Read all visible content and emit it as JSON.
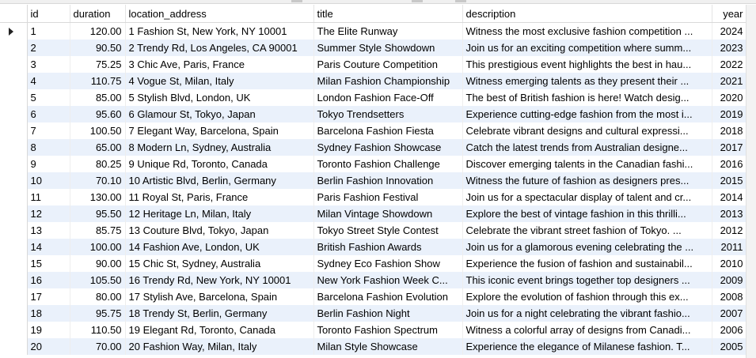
{
  "columns": {
    "id": "id",
    "duration": "duration",
    "location_address": "location_address",
    "title": "title",
    "description": "description",
    "year": "year"
  },
  "rows": [
    {
      "id": "1",
      "duration": "120.00",
      "location_address": "1 Fashion St, New York, NY 10001",
      "title": "The Elite Runway",
      "description": "Witness the most exclusive fashion competition ...",
      "year": "2024"
    },
    {
      "id": "2",
      "duration": "90.50",
      "location_address": "2 Trendy Rd, Los Angeles, CA 90001",
      "title": "Summer Style Showdown",
      "description": "Join us for an exciting competition where summ...",
      "year": "2023"
    },
    {
      "id": "3",
      "duration": "75.25",
      "location_address": "3 Chic Ave, Paris, France",
      "title": "Paris Couture Competition",
      "description": "This prestigious event highlights the best in hau...",
      "year": "2022"
    },
    {
      "id": "4",
      "duration": "110.75",
      "location_address": "4 Vogue St, Milan, Italy",
      "title": "Milan Fashion Championship",
      "description": "Witness emerging talents as they present their ...",
      "year": "2021"
    },
    {
      "id": "5",
      "duration": "85.00",
      "location_address": "5 Stylish Blvd, London, UK",
      "title": "London Fashion Face-Off",
      "description": "The best of British fashion is here! Watch desig...",
      "year": "2020"
    },
    {
      "id": "6",
      "duration": "95.60",
      "location_address": "6 Glamour St, Tokyo, Japan",
      "title": "Tokyo Trendsetters",
      "description": "Experience cutting-edge fashion from the most i...",
      "year": "2019"
    },
    {
      "id": "7",
      "duration": "100.50",
      "location_address": "7 Elegant Way, Barcelona, Spain",
      "title": "Barcelona Fashion Fiesta",
      "description": "Celebrate vibrant designs and cultural expressi...",
      "year": "2018"
    },
    {
      "id": "8",
      "duration": "65.00",
      "location_address": "8 Modern Ln, Sydney, Australia",
      "title": "Sydney Fashion Showcase",
      "description": "Catch the latest trends from Australian designe...",
      "year": "2017"
    },
    {
      "id": "9",
      "duration": "80.25",
      "location_address": "9 Unique Rd, Toronto, Canada",
      "title": "Toronto Fashion Challenge",
      "description": "Discover emerging talents in the Canadian fashi...",
      "year": "2016"
    },
    {
      "id": "10",
      "duration": "70.10",
      "location_address": "10 Artistic Blvd, Berlin, Germany",
      "title": "Berlin Fashion Innovation",
      "description": "Witness the future of fashion as designers pres...",
      "year": "2015"
    },
    {
      "id": "11",
      "duration": "130.00",
      "location_address": "11 Royal St, Paris, France",
      "title": "Paris Fashion Festival",
      "description": "Join us for a spectacular display of talent and cr...",
      "year": "2014"
    },
    {
      "id": "12",
      "duration": "95.50",
      "location_address": "12 Heritage Ln, Milan, Italy",
      "title": "Milan Vintage Showdown",
      "description": "Explore the best of vintage fashion in this thrilli...",
      "year": "2013"
    },
    {
      "id": "13",
      "duration": "85.75",
      "location_address": "13 Couture Blvd, Tokyo, Japan",
      "title": "Tokyo Street Style Contest",
      "description": "Celebrate the vibrant street fashion of Tokyo. ...",
      "year": "2012"
    },
    {
      "id": "14",
      "duration": "100.00",
      "location_address": "14 Fashion Ave, London, UK",
      "title": "British Fashion Awards",
      "description": "Join us for a glamorous evening celebrating the ...",
      "year": "2011"
    },
    {
      "id": "15",
      "duration": "90.00",
      "location_address": "15 Chic St, Sydney, Australia",
      "title": "Sydney Eco Fashion Show",
      "description": "Experience the fusion of fashion and sustainabil...",
      "year": "2010"
    },
    {
      "id": "16",
      "duration": "105.50",
      "location_address": "16 Trendy Rd, New York, NY 10001",
      "title": "New York Fashion Week C...",
      "description": "This iconic event brings together top designers ...",
      "year": "2009"
    },
    {
      "id": "17",
      "duration": "80.00",
      "location_address": "17 Stylish Ave, Barcelona, Spain",
      "title": "Barcelona Fashion Evolution",
      "description": "Explore the evolution of fashion through this ex...",
      "year": "2008"
    },
    {
      "id": "18",
      "duration": "95.75",
      "location_address": "18 Trendy St, Berlin, Germany",
      "title": "Berlin Fashion Night",
      "description": "Join us for a night celebrating the vibrant fashio...",
      "year": "2007"
    },
    {
      "id": "19",
      "duration": "110.50",
      "location_address": "19 Elegant Rd, Toronto, Canada",
      "title": "Toronto Fashion Spectrum",
      "description": "Witness a colorful array of designs from Canadi...",
      "year": "2006"
    },
    {
      "id": "20",
      "duration": "70.00",
      "location_address": "20 Fashion Way, Milan, Italy",
      "title": "Milan Style Showcase",
      "description": "Experience the elegance of Milanese fashion. T...",
      "year": "2005"
    }
  ],
  "current_row": 0,
  "icons": {
    "row_pointer": "row-pointer-icon"
  },
  "colors": {
    "alt_row": "#eaf1fb",
    "row": "#ffffff"
  }
}
